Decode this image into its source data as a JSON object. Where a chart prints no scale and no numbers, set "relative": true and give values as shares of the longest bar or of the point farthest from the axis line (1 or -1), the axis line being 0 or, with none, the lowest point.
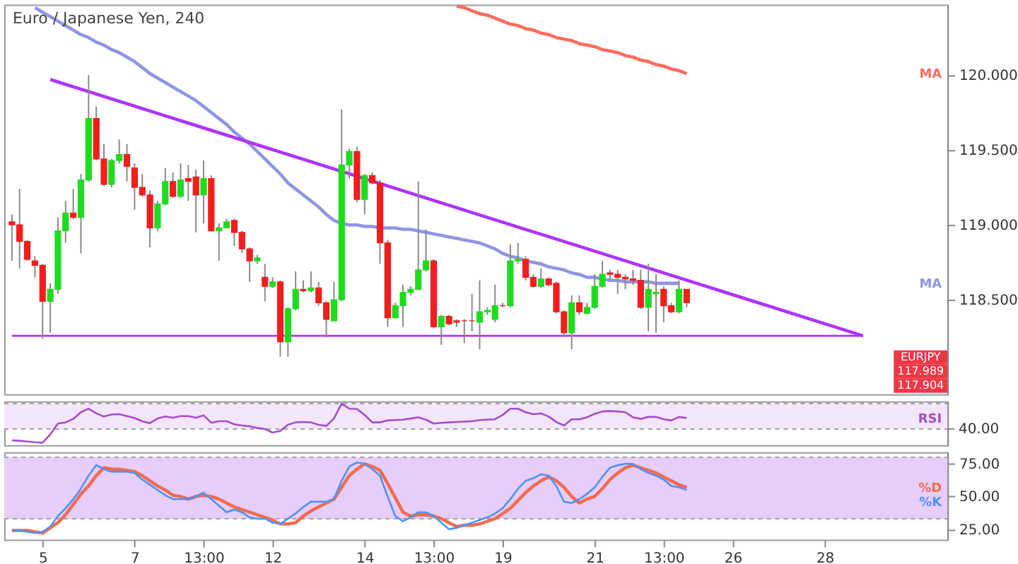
{
  "chart_data": [
    {
      "type": "candlestick",
      "title": "Euro / Japanese Yen, 240",
      "categories": [
        null,
        null,
        null,
        null,
        null,
        null,
        null,
        null,
        null,
        null,
        null,
        null,
        null,
        null,
        null,
        null,
        null,
        null,
        null,
        null,
        null,
        null,
        null,
        null,
        null,
        null,
        null,
        null,
        null,
        null,
        null,
        null,
        null,
        null,
        null,
        null,
        null,
        null,
        null,
        null,
        null,
        null,
        null,
        null,
        null,
        null,
        null,
        null,
        null,
        null,
        null,
        null,
        null,
        null,
        null,
        null,
        null,
        null,
        null,
        null,
        null,
        null,
        null,
        null,
        null,
        null,
        null,
        null,
        null,
        null,
        null,
        null,
        null,
        null,
        null,
        null,
        null,
        null,
        null,
        null,
        null,
        null,
        null,
        null,
        null,
        null,
        null,
        null,
        null,
        null,
        null,
        null,
        null,
        null,
        null,
        null,
        null,
        null,
        null,
        null,
        null,
        null,
        null,
        null,
        null,
        null,
        null,
        null,
        null,
        null,
        null,
        null,
        null,
        null,
        null,
        null,
        null,
        null,
        null,
        null,
        null,
        null
      ],
      "ohlc": [
        [
          119.02,
          119.07,
          118.76,
          119.0
        ],
        [
          119.0,
          119.24,
          118.71,
          118.89
        ],
        [
          118.89,
          118.9,
          118.76,
          118.77
        ],
        [
          118.76,
          118.79,
          118.65,
          118.73
        ],
        [
          118.73,
          118.74,
          118.24,
          118.49
        ],
        [
          118.49,
          118.61,
          118.28,
          118.57
        ],
        [
          118.57,
          119.05,
          118.54,
          118.96
        ],
        [
          118.96,
          119.16,
          118.88,
          119.08
        ],
        [
          119.08,
          119.24,
          119.04,
          119.05
        ],
        [
          119.05,
          119.34,
          118.81,
          119.3
        ],
        [
          119.3,
          120.0,
          119.29,
          119.71
        ],
        [
          119.71,
          119.79,
          119.43,
          119.44
        ],
        [
          119.44,
          119.54,
          119.26,
          119.27
        ],
        [
          119.27,
          119.44,
          119.25,
          119.43
        ],
        [
          119.43,
          119.57,
          119.41,
          119.47
        ],
        [
          119.47,
          119.54,
          119.29,
          119.39
        ],
        [
          119.38,
          119.41,
          119.1,
          119.25
        ],
        [
          119.25,
          119.34,
          119.19,
          119.2
        ],
        [
          119.2,
          119.23,
          118.85,
          118.98
        ],
        [
          118.98,
          119.16,
          118.96,
          119.14
        ],
        [
          119.14,
          119.38,
          119.13,
          119.29
        ],
        [
          119.29,
          119.35,
          119.18,
          119.19
        ],
        [
          119.19,
          119.41,
          119.18,
          119.3
        ],
        [
          119.31,
          119.4,
          119.16,
          119.29
        ],
        [
          119.32,
          119.37,
          118.95,
          119.2
        ],
        [
          119.2,
          119.43,
          119.01,
          119.31
        ],
        [
          119.31,
          119.33,
          118.96,
          118.96
        ],
        [
          118.96,
          119.01,
          118.76,
          118.98
        ],
        [
          118.98,
          119.04,
          118.98,
          119.02
        ],
        [
          119.03,
          119.04,
          118.86,
          118.95
        ],
        [
          118.95,
          118.96,
          118.81,
          118.84
        ],
        [
          118.84,
          118.85,
          118.62,
          118.76
        ],
        [
          118.76,
          118.8,
          118.74,
          118.78
        ],
        [
          118.65,
          118.74,
          118.49,
          118.59
        ],
        [
          118.59,
          118.65,
          118.58,
          118.62
        ],
        [
          118.62,
          118.63,
          118.12,
          118.22
        ],
        [
          118.22,
          118.45,
          118.12,
          118.44
        ],
        [
          118.44,
          118.69,
          118.43,
          118.57
        ],
        [
          118.57,
          118.63,
          118.55,
          118.56
        ],
        [
          118.56,
          118.69,
          118.55,
          118.58
        ],
        [
          118.58,
          118.62,
          118.46,
          118.48
        ],
        [
          118.48,
          118.49,
          118.25,
          118.37
        ],
        [
          118.36,
          118.62,
          118.36,
          118.5
        ],
        [
          118.5,
          119.77,
          118.49,
          119.4
        ],
        [
          119.4,
          119.51,
          119.31,
          119.49
        ],
        [
          119.49,
          119.52,
          119.15,
          119.17
        ],
        [
          119.17,
          119.34,
          119.07,
          119.33
        ],
        [
          119.33,
          119.35,
          119.27,
          119.28
        ],
        [
          119.28,
          119.3,
          118.74,
          118.88
        ],
        [
          118.88,
          118.9,
          118.32,
          118.38
        ],
        [
          118.38,
          118.48,
          118.38,
          118.46
        ],
        [
          118.46,
          118.6,
          118.32,
          118.55
        ],
        [
          118.55,
          118.59,
          118.53,
          118.57
        ],
        [
          118.57,
          119.29,
          118.57,
          118.7
        ],
        [
          118.7,
          118.97,
          118.69,
          118.76
        ],
        [
          118.76,
          118.77,
          118.31,
          118.32
        ],
        [
          118.32,
          118.4,
          118.2,
          118.39
        ],
        [
          118.39,
          118.4,
          118.33,
          118.34
        ],
        [
          118.36,
          118.37,
          118.32,
          118.35
        ],
        [
          118.36,
          118.37,
          118.21,
          118.36
        ],
        [
          118.36,
          118.54,
          118.29,
          118.36
        ],
        [
          118.35,
          118.63,
          118.17,
          118.42
        ],
        [
          118.42,
          118.45,
          118.4,
          118.43
        ],
        [
          118.37,
          118.6,
          118.35,
          118.46
        ],
        [
          118.46,
          118.48,
          118.45,
          118.46
        ],
        [
          118.46,
          118.87,
          118.45,
          118.76
        ],
        [
          118.76,
          118.88,
          118.74,
          118.77
        ],
        [
          118.77,
          118.79,
          118.63,
          118.65
        ],
        [
          118.65,
          118.67,
          118.58,
          118.59
        ],
        [
          118.59,
          118.71,
          118.58,
          118.64
        ],
        [
          118.64,
          118.65,
          118.59,
          118.6
        ],
        [
          118.61,
          118.62,
          118.41,
          118.42
        ],
        [
          118.42,
          118.43,
          118.26,
          118.28
        ],
        [
          118.28,
          118.53,
          118.17,
          118.48
        ],
        [
          118.48,
          118.53,
          118.4,
          118.42
        ],
        [
          118.41,
          118.48,
          118.4,
          118.45
        ],
        [
          118.45,
          118.67,
          118.44,
          118.59
        ],
        [
          118.59,
          118.76,
          118.58,
          118.67
        ],
        [
          118.68,
          118.7,
          118.63,
          118.67
        ],
        [
          118.67,
          118.7,
          118.54,
          118.65
        ],
        [
          118.65,
          118.67,
          118.57,
          118.64
        ],
        [
          118.64,
          118.7,
          118.6,
          118.63
        ],
        [
          118.63,
          118.7,
          118.44,
          118.45
        ],
        [
          118.45,
          118.74,
          118.29,
          118.57
        ],
        [
          118.54,
          118.67,
          118.28,
          118.55
        ],
        [
          118.57,
          118.59,
          118.35,
          118.46
        ],
        [
          118.46,
          118.48,
          118.41,
          118.42
        ],
        [
          118.42,
          118.63,
          118.41,
          118.57
        ],
        [
          118.57,
          118.57,
          118.45,
          118.48
        ],
        null,
        null,
        null,
        null,
        null,
        null,
        null,
        null,
        null,
        null,
        null,
        null,
        null,
        null,
        null,
        null,
        null,
        null,
        null,
        null,
        null,
        null,
        null,
        null,
        null,
        null,
        null,
        null,
        null,
        null,
        null,
        null,
        null
      ],
      "colors": [
        "#f21d1d",
        "#f21d1d",
        "#f21d1d",
        "#f21d1d",
        "#f21d1d",
        "#1fdb1f",
        "#1fdb1f",
        "#1fdb1f",
        "#f21d1d",
        "#1fdb1f",
        "#1fdb1f",
        "#f21d1d",
        "#f21d1d",
        "#1fdb1f",
        "#1fdb1f",
        "#f21d1d",
        "#f21d1d",
        "#f21d1d",
        "#f21d1d",
        "#1fdb1f",
        "#1fdb1f",
        "#f21d1d",
        "#1fdb1f",
        "#f21d1d",
        "#f21d1d",
        "#1fdb1f",
        "#f21d1d",
        "#1fdb1f",
        "#1fdb1f",
        "#f21d1d",
        "#f21d1d",
        "#f21d1d",
        "#1fdb1f",
        "#f21d1d",
        "#1fdb1f",
        "#f21d1d",
        "#1fdb1f",
        "#1fdb1f",
        "#f21d1d",
        "#1fdb1f",
        "#f21d1d",
        "#f21d1d",
        "#1fdb1f",
        "#1fdb1f",
        "#1fdb1f",
        "#f21d1d",
        "#1fdb1f",
        "#f21d1d",
        "#f21d1d",
        "#f21d1d",
        "#1fdb1f",
        "#1fdb1f",
        "#1fdb1f",
        "#1fdb1f",
        "#1fdb1f",
        "#f21d1d",
        "#1fdb1f",
        "#f21d1d",
        "#f21d1d",
        "#f21d1d",
        "#f21d1d",
        "#1fdb1f",
        "#1fdb1f",
        "#1fdb1f",
        "#f21d1d",
        "#1fdb1f",
        "#1fdb1f",
        "#f21d1d",
        "#f21d1d",
        "#1fdb1f",
        "#f21d1d",
        "#f21d1d",
        "#f21d1d",
        "#1fdb1f",
        "#f21d1d",
        "#1fdb1f",
        "#1fdb1f",
        "#1fdb1f",
        "#f21d1d",
        "#f21d1d",
        "#f21d1d",
        "#f21d1d",
        "#f21d1d",
        "#1fdb1f",
        "#1fdb1f",
        "#f21d1d",
        "#f21d1d",
        "#1fdb1f",
        "#f21d1d",
        null,
        null,
        null,
        null,
        null,
        null,
        null,
        null,
        null,
        null,
        null,
        null,
        null,
        null,
        null,
        null,
        null,
        null,
        null,
        null,
        null,
        null,
        null,
        null,
        null,
        null,
        null,
        null,
        null,
        null,
        null,
        null,
        null
      ],
      "series": [
        {
          "type": "line",
          "name": "MA",
          "color": "#ff6b5b",
          "values": [
            null,
            null,
            null,
            null,
            null,
            null,
            null,
            null,
            null,
            null,
            null,
            null,
            null,
            null,
            null,
            null,
            null,
            null,
            null,
            null,
            null,
            null,
            null,
            null,
            null,
            null,
            null,
            null,
            null,
            null,
            null,
            null,
            null,
            null,
            null,
            null,
            null,
            null,
            null,
            null,
            null,
            null,
            null,
            null,
            null,
            null,
            null,
            null,
            null,
            null,
            null,
            null,
            null,
            null,
            null,
            null,
            null,
            null,
            120.46,
            120.45,
            120.43,
            120.41,
            120.4,
            120.38,
            120.36,
            120.34,
            120.33,
            120.31,
            120.3,
            120.28,
            120.27,
            120.25,
            120.24,
            120.23,
            120.21,
            120.2,
            120.19,
            120.17,
            120.16,
            120.15,
            120.13,
            120.12,
            120.1,
            120.09,
            120.07,
            120.06,
            120.04,
            120.03,
            120.01,
            null,
            null,
            null,
            null,
            null,
            null,
            null,
            null,
            null,
            null,
            null,
            null,
            null,
            null,
            null,
            null,
            null,
            null,
            null,
            null,
            null,
            null,
            null,
            null,
            null,
            null,
            null,
            null,
            null,
            null,
            null,
            null,
            null
          ]
        },
        {
          "type": "line",
          "name": "MA",
          "color": "#8f94e6",
          "values": [
            null,
            null,
            null,
            120.45,
            120.42,
            120.39,
            120.36,
            120.33,
            120.3,
            120.27,
            120.25,
            120.22,
            120.2,
            120.17,
            120.15,
            120.12,
            120.09,
            120.05,
            120.01,
            119.98,
            119.95,
            119.92,
            119.89,
            119.86,
            119.83,
            119.79,
            119.75,
            119.71,
            119.67,
            119.62,
            119.58,
            119.54,
            119.49,
            119.44,
            119.39,
            119.34,
            119.28,
            119.24,
            119.2,
            119.16,
            119.12,
            119.07,
            119.03,
            119.01,
            119.0,
            119.0,
            118.99,
            118.99,
            118.98,
            118.98,
            118.98,
            118.97,
            118.97,
            118.96,
            118.95,
            118.94,
            118.93,
            118.92,
            118.91,
            118.9,
            118.89,
            118.88,
            118.86,
            118.84,
            118.81,
            118.79,
            118.78,
            118.76,
            118.75,
            118.74,
            118.72,
            118.71,
            118.7,
            118.68,
            118.67,
            118.65,
            118.65,
            118.64,
            118.63,
            118.63,
            118.62,
            118.62,
            118.62,
            118.62,
            118.61,
            118.61,
            118.61,
            118.61,
            null,
            null,
            null,
            null,
            null,
            null,
            null,
            null,
            null,
            null,
            null,
            null,
            null,
            null,
            null,
            null,
            null,
            null,
            null,
            null,
            null,
            null,
            null,
            null,
            null,
            null,
            null,
            null,
            null,
            null,
            null,
            null,
            null,
            null
          ]
        },
        {
          "type": "line",
          "color": "#ad33ff",
          "values": [
            null,
            null,
            null,
            null,
            null,
            119.97,
            null,
            null,
            null,
            null,
            null,
            null,
            null,
            null,
            null,
            null,
            null,
            null,
            null,
            null,
            null,
            null,
            null,
            null,
            null,
            null,
            null,
            null,
            null,
            null,
            null,
            null,
            null,
            null,
            null,
            null,
            null,
            null,
            null,
            null,
            null,
            null,
            null,
            null,
            null,
            null,
            null,
            null,
            null,
            null,
            null,
            null,
            null,
            null,
            null,
            null,
            null,
            null,
            null,
            null,
            null,
            null,
            null,
            null,
            null,
            null,
            null,
            null,
            null,
            null,
            null,
            null,
            null,
            null,
            null,
            null,
            null,
            null,
            null,
            null,
            null,
            null,
            null,
            null,
            null,
            null,
            null,
            null,
            null,
            null,
            null,
            null,
            null,
            null,
            null,
            null,
            null,
            null,
            null,
            null,
            null,
            null,
            null,
            null,
            null,
            null,
            null,
            null,
            null,
            null,
            null,
            118.26,
            null,
            null,
            null,
            null,
            null,
            null,
            null,
            null,
            null,
            null
          ]
        },
        {
          "type": "line",
          "color": "#ad33ff",
          "values": [
            118.26,
            null,
            null,
            null,
            null,
            null,
            null,
            null,
            null,
            null,
            null,
            null,
            null,
            null,
            null,
            null,
            null,
            null,
            null,
            null,
            null,
            null,
            null,
            null,
            null,
            null,
            null,
            null,
            null,
            null,
            null,
            null,
            null,
            null,
            null,
            null,
            null,
            null,
            null,
            null,
            null,
            null,
            null,
            null,
            null,
            null,
            null,
            null,
            null,
            null,
            null,
            null,
            null,
            null,
            null,
            null,
            null,
            null,
            null,
            null,
            null,
            null,
            null,
            null,
            null,
            null,
            null,
            null,
            null,
            null,
            null,
            null,
            null,
            null,
            null,
            null,
            null,
            null,
            null,
            null,
            null,
            null,
            null,
            null,
            null,
            null,
            null,
            null,
            null,
            null,
            null,
            null,
            null,
            null,
            null,
            null,
            null,
            null,
            null,
            null,
            null,
            null,
            null,
            null,
            null,
            null,
            null,
            null,
            null,
            null,
            null,
            118.26,
            null,
            null,
            null,
            null,
            null,
            null,
            null,
            null,
            null,
            null
          ]
        }
      ],
      "ylim": [
        117.87,
        120.47
      ],
      "yticks": [
        {
          "value": 118.5,
          "label": "118.500"
        },
        {
          "value": 119,
          "label": "119.000"
        },
        {
          "value": 119.5,
          "label": "119.500"
        },
        {
          "value": 120,
          "label": "120.000"
        }
      ],
      "tick_labels": "y",
      "legend": "right",
      "annotations": [
        "EURJPY",
        "117.989",
        "117.904"
      ]
    },
    {
      "type": "line",
      "relative": true,
      "categories": [
        null,
        null,
        null,
        null,
        null,
        null,
        null,
        null,
        null,
        null,
        null,
        null,
        null,
        null,
        null,
        null,
        null,
        null,
        null,
        null,
        null,
        null,
        null,
        null,
        null,
        null,
        null,
        null,
        null,
        null,
        null,
        null,
        null,
        null,
        null,
        null,
        null,
        null,
        null,
        null,
        null,
        null,
        null,
        null,
        null,
        null,
        null,
        null,
        null,
        null,
        null,
        null,
        null,
        null,
        null,
        null,
        null,
        null,
        null,
        null,
        null,
        null,
        null,
        null,
        null,
        null,
        null,
        null,
        null,
        null,
        null,
        null,
        null,
        null,
        null,
        null,
        null,
        null,
        null,
        null,
        null,
        null,
        null,
        null,
        null,
        null,
        null,
        null,
        null,
        null,
        null,
        null,
        null,
        null,
        null,
        null,
        null,
        null,
        null,
        null,
        null,
        null,
        null,
        null,
        null,
        null,
        null,
        null,
        null,
        null,
        null,
        null,
        null,
        null,
        null,
        null,
        null,
        null,
        null,
        null,
        null,
        null
      ],
      "series": [
        {
          "name": "RSI",
          "color": "#a64dc9",
          "values": [
            0.06,
            0.05,
            0.03,
            0.01,
            0,
            0.21,
            0.49,
            0.52,
            0.61,
            0.78,
            0.87,
            0.75,
            0.67,
            0.72,
            0.73,
            0.68,
            0.63,
            0.55,
            0.5,
            0.62,
            0.67,
            0.64,
            0.68,
            0.68,
            0.64,
            0.7,
            0.51,
            0.55,
            0.55,
            0.47,
            0.44,
            0.42,
            0.38,
            0.35,
            0.26,
            0.3,
            0.46,
            0.52,
            0.53,
            0.52,
            0.46,
            0.43,
            0.62,
            1.0,
            0.87,
            0.86,
            0.71,
            0.52,
            0.52,
            0.57,
            0.58,
            0.59,
            0.62,
            0.65,
            0.59,
            0.49,
            0.51,
            0.52,
            0.53,
            0.54,
            0.55,
            0.58,
            0.59,
            0.6,
            0.71,
            0.87,
            0.87,
            0.78,
            0.73,
            0.75,
            0.67,
            0.53,
            0.44,
            0.6,
            0.6,
            0.65,
            0.74,
            0.8,
            0.81,
            0.8,
            0.78,
            0.65,
            0.61,
            0.66,
            0.66,
            0.6,
            0.57,
            0.66,
            0.63,
            null,
            null,
            null,
            null,
            null,
            null,
            null,
            null,
            null,
            null,
            null,
            null,
            null,
            null,
            null,
            null,
            null,
            null,
            null,
            null,
            null,
            null,
            null,
            null,
            null,
            null,
            null,
            null,
            null,
            null,
            null,
            null,
            null
          ]
        }
      ],
      "tick_labels": false,
      "legend": "right",
      "bands": [
        {
          "axis": "y",
          "from": 0.35,
          "to": 1.0,
          "color": "#f3e6fb"
        }
      ],
      "ref_lines": [
        {
          "axis": "y",
          "value": 0.35,
          "color": "#a0a0a0",
          "line_style": "dashed"
        },
        {
          "axis": "y",
          "value": 1.0,
          "color": "#a0a0a0",
          "line_style": "dashed"
        }
      ],
      "annotations": [
        "40.00"
      ]
    },
    {
      "type": "line",
      "categories": [
        null,
        null,
        null,
        null,
        "5",
        null,
        null,
        null,
        null,
        null,
        null,
        null,
        null,
        null,
        null,
        null,
        "7",
        null,
        null,
        null,
        null,
        null,
        null,
        null,
        null,
        "13:00",
        null,
        null,
        null,
        null,
        null,
        null,
        null,
        null,
        "12",
        null,
        null,
        null,
        null,
        null,
        null,
        null,
        null,
        null,
        null,
        null,
        "14",
        null,
        null,
        null,
        null,
        null,
        null,
        null,
        null,
        "13:00",
        null,
        null,
        null,
        null,
        null,
        null,
        null,
        null,
        "19",
        null,
        null,
        null,
        null,
        null,
        null,
        null,
        null,
        null,
        null,
        null,
        "21",
        null,
        null,
        null,
        null,
        null,
        null,
        null,
        null,
        "13:00",
        null,
        null,
        null,
        null,
        null,
        null,
        null,
        null,
        "26",
        null,
        null,
        null,
        null,
        null,
        null,
        null,
        null,
        null,
        null,
        null,
        "28",
        null,
        null,
        null,
        null,
        null,
        null,
        null,
        null,
        null,
        null,
        null,
        null,
        null,
        null,
        null
      ],
      "series": [
        {
          "name": "%D",
          "color": "#f26b50",
          "values": [
            24,
            24,
            24,
            23,
            22,
            26,
            30,
            36,
            44,
            52,
            58,
            66,
            72,
            71,
            71,
            70,
            69,
            66,
            62,
            58,
            55,
            51,
            50,
            48,
            50,
            51,
            50,
            48,
            45,
            42,
            40,
            38,
            36,
            34,
            32,
            29,
            29,
            30,
            35,
            39,
            42,
            45,
            48,
            57,
            66,
            71,
            75,
            73,
            70,
            60,
            49,
            38,
            35,
            36,
            36,
            35,
            33,
            30,
            27,
            28,
            28,
            29,
            31,
            33,
            37,
            41,
            47,
            53,
            58,
            62,
            65,
            62,
            57,
            50,
            45,
            48,
            50,
            56,
            63,
            68,
            72,
            74,
            72,
            70,
            68,
            65,
            62,
            59,
            57,
            null,
            null,
            null,
            null,
            null,
            null,
            null,
            null,
            null,
            null,
            null,
            null,
            null,
            null,
            null,
            null,
            null,
            null,
            null,
            null,
            null,
            null,
            null,
            null,
            null,
            null,
            null,
            null,
            null,
            null,
            null,
            null,
            null
          ]
        },
        {
          "name": "%K",
          "color": "#4f93f5",
          "values": [
            24,
            24,
            23,
            22,
            23,
            27,
            35,
            41,
            48,
            56,
            66,
            74,
            71,
            69,
            69,
            69,
            68,
            63,
            59,
            55,
            51,
            48,
            48,
            48,
            50,
            53,
            48,
            43,
            38,
            40,
            38,
            34,
            33,
            33,
            30,
            29,
            33,
            37,
            42,
            46,
            46,
            46,
            48,
            62,
            73,
            76,
            75,
            71,
            66,
            50,
            35,
            31,
            34,
            38,
            38,
            35,
            30,
            25,
            26,
            28,
            30,
            32,
            34,
            37,
            41,
            48,
            56,
            62,
            64,
            67,
            66,
            58,
            46,
            45,
            48,
            52,
            57,
            65,
            72,
            74,
            75,
            75,
            71,
            68,
            66,
            63,
            58,
            57,
            55,
            null,
            null,
            null,
            null,
            null,
            null,
            null,
            null,
            null,
            null,
            null,
            null,
            null,
            null,
            null,
            null,
            null,
            null,
            null,
            null,
            null,
            null,
            null,
            null,
            null,
            null,
            null,
            null,
            null,
            null,
            null,
            null,
            null
          ]
        }
      ],
      "ylim": [
        17,
        84
      ],
      "yticks": [
        {
          "value": 25,
          "label": "25.00"
        },
        {
          "value": 50,
          "label": "50.00"
        },
        {
          "value": 75,
          "label": "75.00"
        }
      ],
      "legend": "right",
      "bands": [
        {
          "axis": "y",
          "from": 33,
          "to": 80,
          "color": "#e6cdfa"
        }
      ],
      "ref_lines": [
        {
          "axis": "y",
          "value": 33,
          "color": "#a0a0a0",
          "line_style": "dashed"
        },
        {
          "axis": "y",
          "value": 80,
          "color": "#a0a0a0",
          "line_style": "dashed"
        }
      ]
    }
  ]
}
